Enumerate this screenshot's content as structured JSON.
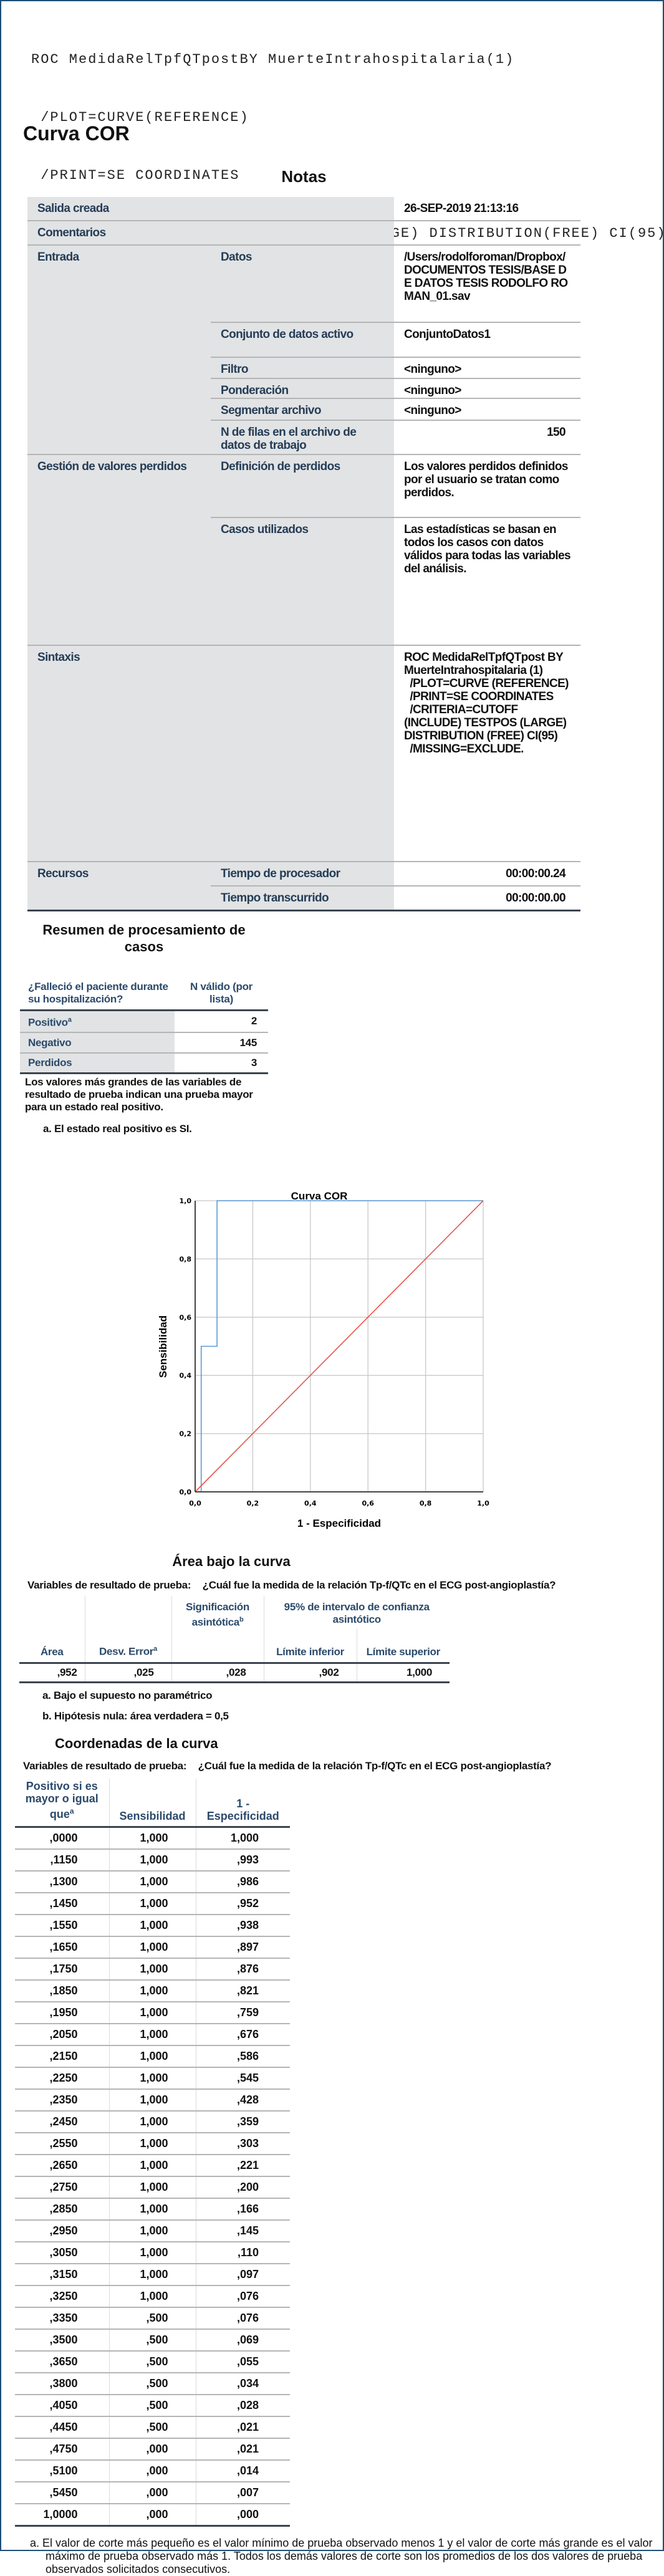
{
  "syntax_lines": [
    "ROC MedidaRelTpfQTpostBY MuerteIntrahospitalaria(1)",
    " /PLOT=CURVE(REFERENCE)",
    " /PRINT=SE COORDINATES",
    " /CRITERIA=CUTOFF(INCLUDE) TESTPOS(LARGE) DISTRIBUTION(FREE) CI(95)",
    " /MISSING=EXCLUDE."
  ],
  "heading": "Curva COR",
  "notes": {
    "title": "Notas",
    "salida_label": "Salida creada",
    "salida_value": "26-SEP-2019 21:13:16",
    "comentarios_label": "Comentarios",
    "entrada_label": "Entrada",
    "datos_label": "Datos",
    "datos_value": "/Users/rodolforoman/Dropbox/DOCUMENTOS TESIS/BASE DE DATOS TESIS RODOLFO ROMAN_01.sav",
    "conjunto_label": "Conjunto de datos activo",
    "conjunto_value": "ConjuntoDatos1",
    "filtro_label": "Filtro",
    "filtro_value": "<ninguno>",
    "ponderacion_label": "Ponderación",
    "ponderacion_value": "<ninguno>",
    "segmentar_label": "Segmentar archivo",
    "segmentar_value": "<ninguno>",
    "nfilas_label": "N de filas en el archivo de datos de trabajo",
    "nfilas_value": "150",
    "gestion_label": "Gestión de valores perdidos",
    "definicion_label": "Definición de perdidos",
    "definicion_value": "Los valores perdidos definidos por el usuario se tratan como perdidos.",
    "casos_label": "Casos utilizados",
    "casos_value": "Las estadísticas se basan en todos los casos con datos válidos para todas las variables del análisis.",
    "sintaxis_label": "Sintaxis",
    "sintaxis_value": "ROC MedidaRelTpfQTpost BY MuerteIntrahospitalaria (1)\n  /PLOT=CURVE (REFERENCE)\n  /PRINT=SE COORDINATES\n  /CRITERIA=CUTOFF (INCLUDE) TESTPOS (LARGE) DISTRIBUTION (FREE) CI(95)\n  /MISSING=EXCLUDE.",
    "recursos_label": "Recursos",
    "procesador_label": "Tiempo de procesador",
    "procesador_value": "00:00:00.24",
    "transcurrido_label": "Tiempo transcurrido",
    "transcurrido_value": "00:00:00.00"
  },
  "resumen": {
    "title_line1": "Resumen de procesamiento de",
    "title_line2": "casos",
    "col1": "¿Falleció el paciente durante su hospitalización?",
    "col2": "N válido (por lista)",
    "rows": [
      {
        "label": "Positivo",
        "sup": "a",
        "value": "2"
      },
      {
        "label": "Negativo",
        "value": "145"
      },
      {
        "label": "Perdidos",
        "value": "3"
      }
    ],
    "note": "Los valores más grandes de las variables de resultado de prueba indican una prueba mayor para un estado real positivo.",
    "footnote": "a. El estado real positivo es SI."
  },
  "chart_data": {
    "type": "line",
    "title": "Curva COR",
    "xlabel": "1 - Especificidad",
    "ylabel": "Sensibilidad",
    "xlim": [
      0,
      1
    ],
    "ylim": [
      0,
      1
    ],
    "xticks": [
      "0,0",
      "0,2",
      "0,4",
      "0,6",
      "0,8",
      "1,0"
    ],
    "yticks": [
      "0,0",
      "0,2",
      "0,4",
      "0,6",
      "0,8",
      "1,0"
    ],
    "grid": true,
    "series": [
      {
        "color": "#5b9bd5",
        "x": [
          0,
          0.021,
          0.021,
          0.076,
          0.076,
          1
        ],
        "y": [
          0,
          0,
          0.5,
          0.5,
          1,
          1
        ]
      },
      {
        "color": "#e8534a",
        "x": [
          0,
          1
        ],
        "y": [
          0,
          1
        ]
      }
    ]
  },
  "area": {
    "title": "Área bajo la curva",
    "var_label": "Variables de resultado de prueba:",
    "var_value": "¿Cuál fue la medida de la relación Tp-f/QTc en el ECG post-angioplastía?",
    "h_area": "Área",
    "h_error": "Desv. Error",
    "h_error_sup": "a",
    "h_sig": "Significación asintótica",
    "h_sig_sup": "b",
    "h_ci": "95% de intervalo de confianza asintótico",
    "h_inf": "Límite inferior",
    "h_sup": "Límite superior",
    "values": [
      ",952",
      ",025",
      ",028",
      ",902",
      "1,000"
    ],
    "foot_a": "a. Bajo el supuesto no paramétrico",
    "foot_b": "b. Hipótesis nula: área verdadera = 0,5"
  },
  "coords": {
    "title": "Coordenadas de la curva",
    "var_label": "Variables de resultado de prueba:",
    "var_value": "¿Cuál fue la medida de la relación Tp-f/QTc en el ECG post-angioplastía?",
    "h1": "Positivo si es mayor o igual que",
    "h1_sup": "a",
    "h2": "Sensibilidad",
    "h3": "1 - Especificidad",
    "rows": [
      [
        ",0000",
        "1,000",
        "1,000"
      ],
      [
        ",1150",
        "1,000",
        ",993"
      ],
      [
        ",1300",
        "1,000",
        ",986"
      ],
      [
        ",1450",
        "1,000",
        ",952"
      ],
      [
        ",1550",
        "1,000",
        ",938"
      ],
      [
        ",1650",
        "1,000",
        ",897"
      ],
      [
        ",1750",
        "1,000",
        ",876"
      ],
      [
        ",1850",
        "1,000",
        ",821"
      ],
      [
        ",1950",
        "1,000",
        ",759"
      ],
      [
        ",2050",
        "1,000",
        ",676"
      ],
      [
        ",2150",
        "1,000",
        ",586"
      ],
      [
        ",2250",
        "1,000",
        ",545"
      ],
      [
        ",2350",
        "1,000",
        ",428"
      ],
      [
        ",2450",
        "1,000",
        ",359"
      ],
      [
        ",2550",
        "1,000",
        ",303"
      ],
      [
        ",2650",
        "1,000",
        ",221"
      ],
      [
        ",2750",
        "1,000",
        ",200"
      ],
      [
        ",2850",
        "1,000",
        ",166"
      ],
      [
        ",2950",
        "1,000",
        ",145"
      ],
      [
        ",3050",
        "1,000",
        ",110"
      ],
      [
        ",3150",
        "1,000",
        ",097"
      ],
      [
        ",3250",
        "1,000",
        ",076"
      ],
      [
        ",3350",
        ",500",
        ",076"
      ],
      [
        ",3500",
        ",500",
        ",069"
      ],
      [
        ",3650",
        ",500",
        ",055"
      ],
      [
        ",3800",
        ",500",
        ",034"
      ],
      [
        ",4050",
        ",500",
        ",028"
      ],
      [
        ",4450",
        ",500",
        ",021"
      ],
      [
        ",4750",
        ",000",
        ",021"
      ],
      [
        ",5100",
        ",000",
        ",014"
      ],
      [
        ",5450",
        ",000",
        ",007"
      ],
      [
        "1,0000",
        ",000",
        ",000"
      ]
    ],
    "footnote": "a. El valor de corte más pequeño es el valor mínimo de prueba observado menos 1 y el valor de corte más grande es el valor máximo de prueba observado más 1. Todos los demás valores de corte son los promedios de los dos valores de prueba observados solicitados consecutivos."
  }
}
